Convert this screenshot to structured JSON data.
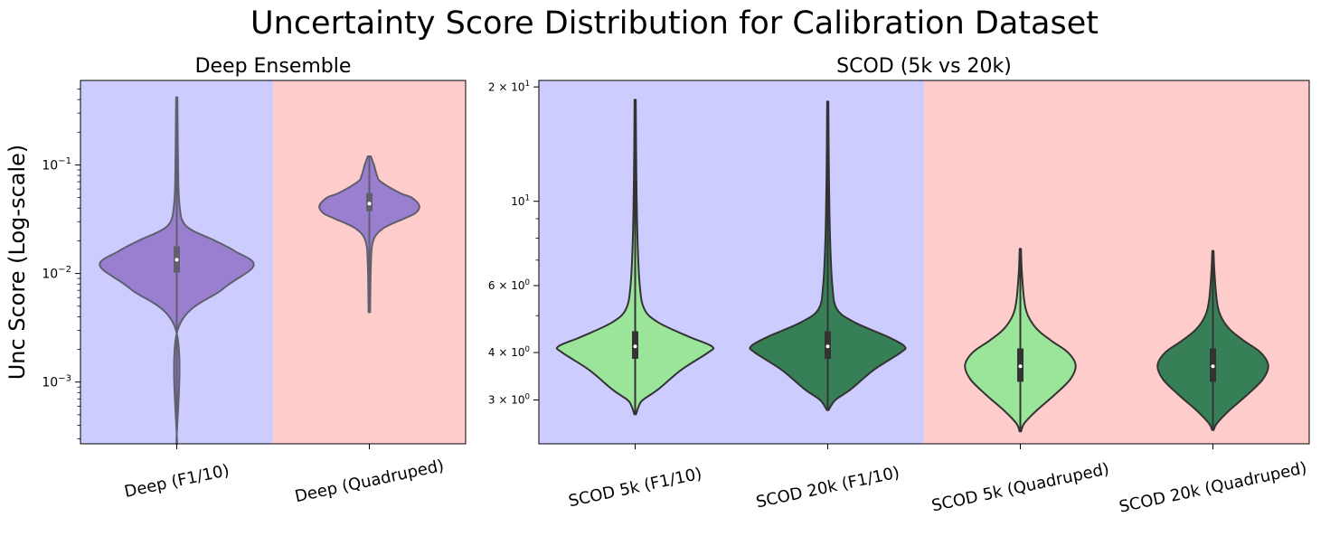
{
  "suptitle": "Uncertainty Score Distribution for Calibration Dataset",
  "chart_data": [
    {
      "type": "violin",
      "title": "Deep Ensemble",
      "ylabel": "Unc Score (Log-scale)",
      "yscale": "log",
      "ylim": [
        0.00027,
        0.6
      ],
      "yticks": [
        {
          "value": 0.1,
          "base": "10",
          "exp": "−1"
        },
        {
          "value": 0.01,
          "base": "10",
          "exp": "−2"
        },
        {
          "value": 0.001,
          "base": "10",
          "exp": "−3"
        }
      ],
      "categories": [
        "Deep (F1/10)",
        "Deep (Quadruped)"
      ],
      "background_colors": [
        "#ccccff",
        "#ffcccc"
      ],
      "violins": [
        {
          "color": "#9a7fd1",
          "edge": "#5f5f6e",
          "min": 0.00027,
          "max": 0.42,
          "q1": 0.0102,
          "median": 0.0134,
          "q3": 0.0178,
          "profile": [
            [
              0.00027,
              0.004
            ],
            [
              0.003,
              0.01
            ],
            [
              0.0072,
              0.6
            ],
            [
              0.0118,
              1.0
            ],
            [
              0.016,
              0.76
            ],
            [
              0.02,
              0.5
            ],
            [
              0.025,
              0.2
            ],
            [
              0.03,
              0.08
            ],
            [
              0.04,
              0.04
            ],
            [
              0.07,
              0.02
            ],
            [
              0.42,
              0.008
            ]
          ]
        },
        {
          "color": "#9a7fd1",
          "edge": "#5f5f6e",
          "min": 0.0044,
          "max": 0.12,
          "q1": 0.0375,
          "median": 0.044,
          "q3": 0.055,
          "profile": [
            [
              0.0044,
              0.01
            ],
            [
              0.012,
              0.02
            ],
            [
              0.02,
              0.05
            ],
            [
              0.026,
              0.18
            ],
            [
              0.032,
              0.45
            ],
            [
              0.036,
              0.6
            ],
            [
              0.042,
              0.65
            ],
            [
              0.05,
              0.55
            ],
            [
              0.055,
              0.4
            ],
            [
              0.07,
              0.15
            ],
            [
              0.08,
              0.1
            ],
            [
              0.1,
              0.06
            ],
            [
              0.12,
              0.02
            ]
          ]
        }
      ]
    },
    {
      "type": "violin",
      "title": "SCOD (5k vs 20k)",
      "yscale": "log",
      "ylim": [
        2.3,
        20.8
      ],
      "yticks": [
        {
          "value": 20,
          "base": "2 × 10",
          "exp": "1"
        },
        {
          "value": 10,
          "base": "10",
          "exp": "1"
        },
        {
          "value": 6,
          "base": "6 × 10",
          "exp": "0"
        },
        {
          "value": 4,
          "base": "4 × 10",
          "exp": "0"
        },
        {
          "value": 3,
          "base": "3 × 10",
          "exp": "0"
        }
      ],
      "categories": [
        "SCOD 5k (F1/10)",
        "SCOD 20k (F1/10)",
        "SCOD 5k (Quadruped)",
        "SCOD 20k (Quadruped)"
      ],
      "background_colors": [
        "#ccccff",
        "#ffcccc"
      ],
      "violins": [
        {
          "color": "#9be59b",
          "edge": "#333333",
          "min": 2.75,
          "max": 18.5,
          "q1": 3.85,
          "median": 4.15,
          "q3": 4.55,
          "profile": [
            [
              2.75,
              0.01
            ],
            [
              2.9,
              0.05
            ],
            [
              3.0,
              0.1
            ],
            [
              3.2,
              0.3
            ],
            [
              3.6,
              0.6
            ],
            [
              4.0,
              0.95
            ],
            [
              4.15,
              1.0
            ],
            [
              4.4,
              0.7
            ],
            [
              4.8,
              0.3
            ],
            [
              5.2,
              0.12
            ],
            [
              6.0,
              0.06
            ],
            [
              8.0,
              0.03
            ],
            [
              12.0,
              0.015
            ],
            [
              18.5,
              0.008
            ]
          ]
        },
        {
          "color": "#378057",
          "edge": "#333333",
          "min": 2.82,
          "max": 18.3,
          "q1": 3.85,
          "median": 4.15,
          "q3": 4.55,
          "profile": [
            [
              2.82,
              0.01
            ],
            [
              3.0,
              0.1
            ],
            [
              3.2,
              0.3
            ],
            [
              3.6,
              0.6
            ],
            [
              4.0,
              0.95
            ],
            [
              4.15,
              1.0
            ],
            [
              4.4,
              0.78
            ],
            [
              4.8,
              0.35
            ],
            [
              5.2,
              0.12
            ],
            [
              6.0,
              0.06
            ],
            [
              8.0,
              0.03
            ],
            [
              12.0,
              0.015
            ],
            [
              18.3,
              0.008
            ]
          ]
        },
        {
          "color": "#9be59b",
          "edge": "#333333",
          "min": 2.48,
          "max": 7.5,
          "q1": 3.35,
          "median": 3.68,
          "q3": 4.1,
          "profile": [
            [
              2.48,
              0.01
            ],
            [
              2.6,
              0.05
            ],
            [
              2.8,
              0.2
            ],
            [
              3.1,
              0.45
            ],
            [
              3.4,
              0.65
            ],
            [
              3.7,
              0.72
            ],
            [
              4.0,
              0.62
            ],
            [
              4.3,
              0.4
            ],
            [
              4.6,
              0.22
            ],
            [
              5.0,
              0.1
            ],
            [
              5.5,
              0.05
            ],
            [
              6.5,
              0.02
            ],
            [
              7.5,
              0.008
            ]
          ]
        },
        {
          "color": "#378057",
          "edge": "#333333",
          "min": 2.5,
          "max": 7.4,
          "q1": 3.35,
          "median": 3.68,
          "q3": 4.1,
          "profile": [
            [
              2.5,
              0.01
            ],
            [
              2.6,
              0.05
            ],
            [
              2.8,
              0.2
            ],
            [
              3.1,
              0.45
            ],
            [
              3.4,
              0.65
            ],
            [
              3.7,
              0.72
            ],
            [
              4.0,
              0.62
            ],
            [
              4.3,
              0.4
            ],
            [
              4.6,
              0.22
            ],
            [
              5.0,
              0.1
            ],
            [
              5.5,
              0.05
            ],
            [
              6.5,
              0.02
            ],
            [
              7.4,
              0.008
            ]
          ]
        }
      ]
    }
  ]
}
